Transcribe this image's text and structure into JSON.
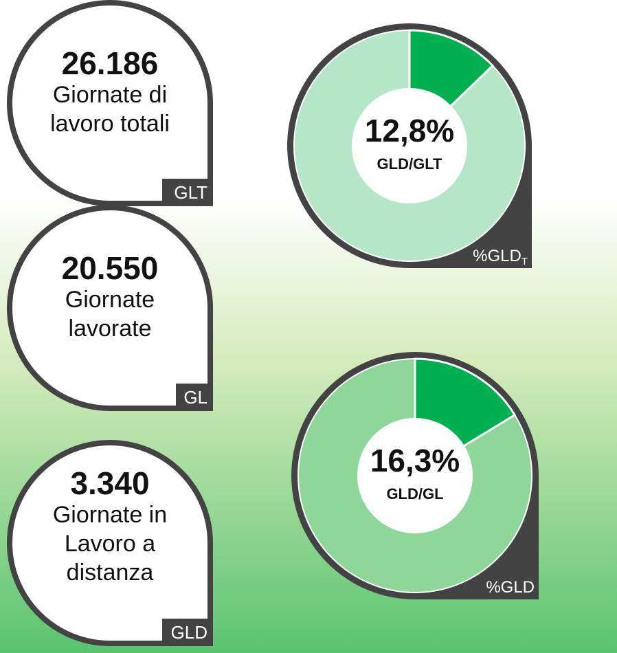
{
  "cards": [
    {
      "value": "26.186",
      "lines": [
        "Giornate di",
        "lavoro totali"
      ],
      "tag": "GLT"
    },
    {
      "value": "20.550",
      "lines": [
        "Giornate",
        "lavorate"
      ],
      "tag": "GL"
    },
    {
      "value": "3.340",
      "lines": [
        "Giornate in",
        "Lavoro a",
        "distanza"
      ],
      "tag": "GLD"
    }
  ],
  "donuts": [
    {
      "value": 12.8,
      "value_label": "12,8%",
      "label": "GLD/GLT",
      "tag": "%GLD",
      "tag_sub": "T",
      "color": "#00b050",
      "rest_color": "#b5e6c8"
    },
    {
      "value": 16.3,
      "value_label": "16,3%",
      "label": "GLD/GL",
      "tag": "%GLD",
      "color": "#00b050",
      "rest_color": "#8fd69b"
    }
  ]
}
